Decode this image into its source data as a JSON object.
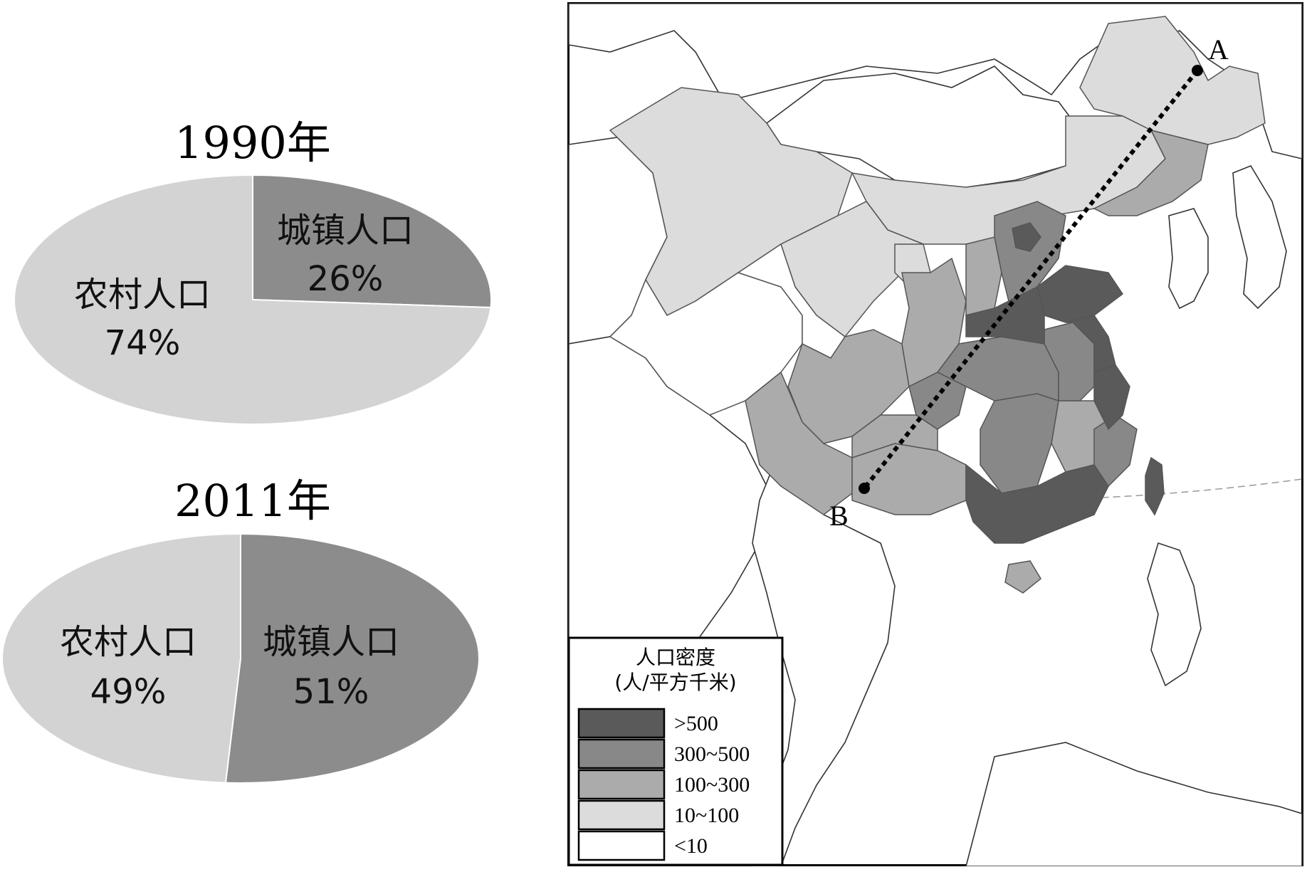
{
  "chart_data": [
    {
      "type": "pie",
      "title": "1990年",
      "labels": [
        "城镇人口",
        "农村人口"
      ],
      "values": [
        26,
        74
      ],
      "value_labels": [
        "26%",
        "74%"
      ],
      "colors": [
        "#8c8c8c",
        "#d3d3d3"
      ]
    },
    {
      "type": "pie",
      "title": "2011年",
      "labels": [
        "城镇人口",
        "农村人口"
      ],
      "values": [
        51,
        49
      ],
      "value_labels": [
        "51%",
        "49%"
      ],
      "colors": [
        "#8c8c8c",
        "#d3d3d3"
      ]
    }
  ],
  "map": {
    "point_a": "A",
    "point_b": "B",
    "legend": {
      "title": "人口密度",
      "unit": "(人/平方千米)",
      "items": [
        {
          "label": ">500",
          "color": "#5a5a5a"
        },
        {
          "label": "300~500",
          "color": "#888888"
        },
        {
          "label": "100~300",
          "color": "#ababab"
        },
        {
          "label": "10~100",
          "color": "#dcdcdc"
        },
        {
          "label": "<10",
          "color": "#ffffff"
        }
      ]
    }
  }
}
